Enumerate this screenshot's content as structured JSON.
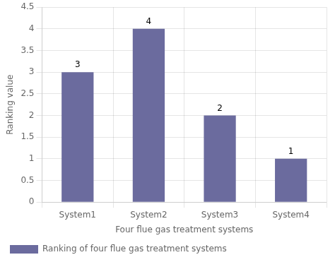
{
  "chart_data": {
    "type": "bar",
    "categories": [
      "System1",
      "System2",
      "System3",
      "System4"
    ],
    "series": [
      {
        "name": "Ranking of four flue gas treatment systems",
        "color": "#6b6b9e",
        "values": [
          3,
          4,
          2,
          1
        ]
      }
    ],
    "xlabel": "Four flue gas treatment systems",
    "ylabel": "Ranking value",
    "ylim": [
      0,
      4.5
    ],
    "yticks": [
      0,
      0.5,
      1,
      1.5,
      2,
      2.5,
      3,
      3.5,
      4,
      4.5
    ],
    "grid": true,
    "legend": "lower left",
    "data_labels": true
  }
}
